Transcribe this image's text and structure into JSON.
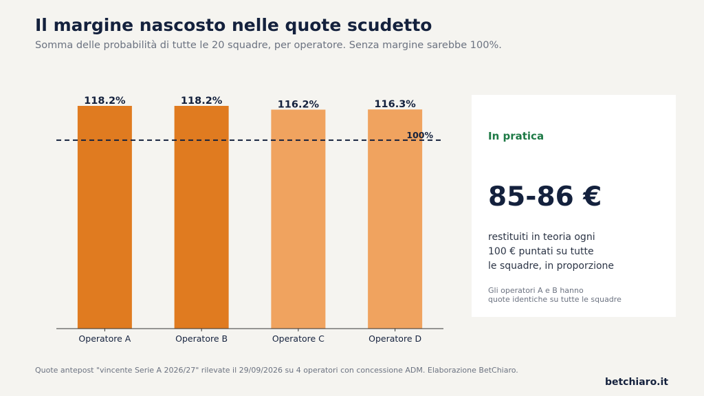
{
  "header": {
    "title": "Il margine nascosto nelle quote scudetto",
    "subtitle": "Somma delle probabilità di tutte le 20 squadre, per operatore. Senza margine sarebbe 100%."
  },
  "chart_data": {
    "type": "bar",
    "categories": [
      "Operatore A",
      "Operatore B",
      "Operatore C",
      "Operatore D"
    ],
    "values": [
      118.2,
      118.2,
      116.2,
      116.3
    ],
    "value_labels": [
      "118.2%",
      "118.2%",
      "116.2%",
      "116.3%"
    ],
    "bar_colors": [
      "#e07b20",
      "#e07b20",
      "#f0a35f",
      "#f0a35f"
    ],
    "reference_line": {
      "value": 100,
      "label": "100%",
      "style": "dashed",
      "color": "#14213d"
    },
    "ylim": [
      0,
      118.2
    ],
    "grid": false
  },
  "card": {
    "kicker": "In pratica",
    "big_value": "85-86 €",
    "text_lines": [
      "restituiti in teoria ogni",
      "100 € puntati su tutte",
      "le squadre, in proporzione"
    ],
    "note_lines": [
      "Gli operatori A e B hanno",
      "quote identiche su tutte le squadre"
    ]
  },
  "footer": {
    "source": "Quote antepost \"vincente Serie A 2026/27\" rilevate il 29/09/2026 su 4 operatori con concessione ADM. Elaborazione BetChiaro.",
    "brand": "betchiaro.it"
  },
  "colors": {
    "title": "#14213d",
    "accent_green": "#1e7a46",
    "background": "#f5f4f0"
  }
}
